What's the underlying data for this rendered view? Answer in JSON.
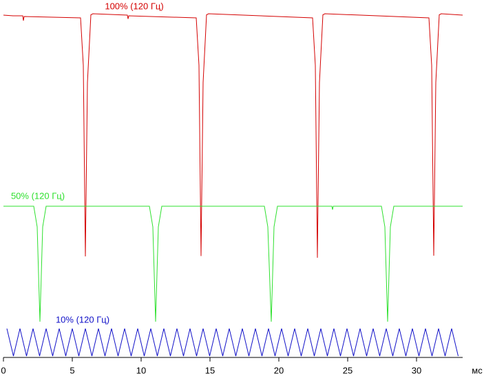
{
  "chart_data": {
    "type": "line",
    "x_label": "мс",
    "xlim": [
      0,
      33.35
    ],
    "xticks": [
      0,
      5,
      10,
      15,
      20,
      25,
      30
    ],
    "ylim": [
      0,
      100
    ],
    "series": [
      {
        "name": "100% (120 Гц)",
        "color": "#d40000",
        "x": [
          0,
          0.7,
          1.4,
          1.45,
          1.5,
          5.6,
          5.8,
          5.95,
          6.1,
          6.35,
          6.5,
          9,
          9.05,
          9.1,
          14.0,
          14.2,
          14.35,
          14.5,
          14.75,
          14.9,
          22.45,
          22.65,
          22.8,
          22.95,
          23.2,
          23.35,
          30.9,
          31.1,
          31.25,
          31.4,
          31.65,
          31.8,
          33.35
        ],
        "values": [
          99.6,
          99.4,
          99.4,
          98,
          99.2,
          98.8,
          85,
          29.4,
          80,
          99.7,
          100,
          99.6,
          98.5,
          99.4,
          98.8,
          85,
          29.5,
          80,
          99.7,
          100,
          98.8,
          85,
          29,
          80,
          99.7,
          100,
          98.8,
          85,
          29.6,
          80,
          99.7,
          100,
          99.6
        ]
      },
      {
        "name": "50% (120 Гц)",
        "color": "#2ee02e",
        "x": [
          0,
          2.2,
          2.45,
          2.65,
          2.85,
          3.1,
          7.0,
          10.6,
          10.85,
          11.05,
          11.25,
          11.5,
          16.0,
          18.95,
          19.2,
          19.45,
          19.65,
          19.9,
          23.85,
          23.9,
          23.95,
          27.45,
          27.7,
          27.9,
          28.1,
          28.35,
          33.35
        ],
        "values": [
          44,
          44,
          38,
          10.4,
          38,
          44,
          44,
          44,
          38,
          10.4,
          38,
          44,
          44,
          44,
          38,
          10.4,
          38,
          44,
          44,
          43,
          44,
          44,
          38,
          10.4,
          38,
          44,
          44
        ]
      },
      {
        "name": "10% (120 Гц)",
        "color": "#1010c8",
        "x": [
          0.25,
          0.725,
          1.2,
          1.675,
          2.15,
          2.625,
          3.1,
          3.575,
          4.05,
          4.525,
          5,
          5.475,
          5.95,
          6.425,
          6.9,
          7.375,
          7.85,
          8.325,
          8.8,
          9.275,
          9.75,
          10.225,
          10.7,
          11.175,
          11.65,
          12.125,
          12.6,
          13.075,
          13.55,
          14.025,
          14.5,
          14.975,
          15.45,
          15.925,
          16.4,
          16.875,
          17.35,
          17.825,
          18.3,
          18.775,
          19.25,
          19.725,
          20.2,
          20.675,
          21.15,
          21.625,
          22.1,
          22.575,
          23.05,
          23.525,
          24,
          24.475,
          24.95,
          25.425,
          25.9,
          26.375,
          26.85,
          27.325,
          27.8,
          28.275,
          28.75,
          29.225,
          29.7,
          30.175,
          30.65,
          31.125,
          31.6,
          32.075,
          32.55,
          33.025
        ],
        "values": [
          8.4,
          0.4,
          8.4,
          0.4,
          8.4,
          0.4,
          8.4,
          0.4,
          8.4,
          0.4,
          8.4,
          0.4,
          8.4,
          0.4,
          8.4,
          0.4,
          8.4,
          0.4,
          8.4,
          0.4,
          8.4,
          0.4,
          8.4,
          0.4,
          8.4,
          0.4,
          8.4,
          0.4,
          8.4,
          0.4,
          8.4,
          0.4,
          8.4,
          0.4,
          8.4,
          0.4,
          8.4,
          0.4,
          8.4,
          0.4,
          8.4,
          0.4,
          8.4,
          0.4,
          8.4,
          0.4,
          8.4,
          0.4,
          8.4,
          0.4,
          8.4,
          0.4,
          8.4,
          0.4,
          8.4,
          0.4,
          8.4,
          0.4,
          8.4,
          0.4,
          8.4,
          0.4,
          8.4,
          0.4,
          8.4,
          0.4,
          8.4,
          0.4,
          8.4,
          0.4
        ]
      }
    ]
  }
}
